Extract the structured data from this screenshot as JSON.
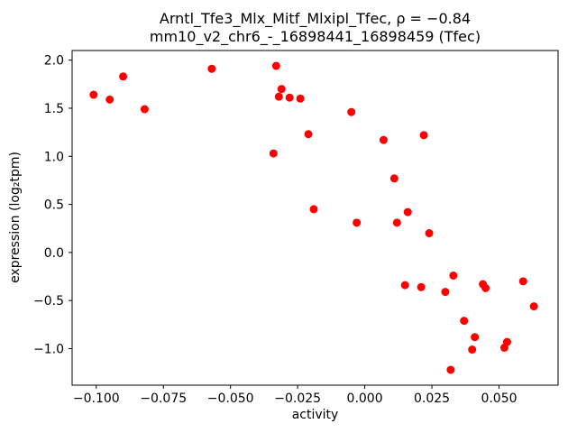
{
  "figure": {
    "background": "#ffffff"
  },
  "chart_data": {
    "type": "scatter",
    "title": "Arntl_Tfe3_Mlx_Mitf_Mlxipl_Tfec, ρ = −0.84",
    "subtitle": "mm10_v2_chr6_-_16898441_16898459 (Tfec)",
    "rho": -0.84,
    "xlabel": "activity",
    "ylabel": "expression (log₂tpm)",
    "marker_color": "#ff0000",
    "axis_color": "#000000",
    "grid": false,
    "legend": "none",
    "xlim": [
      -0.109,
      0.072
    ],
    "ylim": [
      -1.38,
      2.1
    ],
    "xticks": [
      -0.1,
      -0.075,
      -0.05,
      -0.025,
      0.0,
      0.025,
      0.05
    ],
    "xtick_labels": [
      "−0.100",
      "−0.075",
      "−0.050",
      "−0.025",
      "0.000",
      "0.025",
      "0.050"
    ],
    "yticks": [
      -1.0,
      -0.5,
      0.0,
      0.5,
      1.0,
      1.5,
      2.0
    ],
    "ytick_labels": [
      "−1.0",
      "−0.5",
      "0.0",
      "0.5",
      "1.0",
      "1.5",
      "2.0"
    ],
    "points": [
      [
        -0.101,
        1.64
      ],
      [
        -0.095,
        1.59
      ],
      [
        -0.09,
        1.83
      ],
      [
        -0.082,
        1.49
      ],
      [
        -0.057,
        1.91
      ],
      [
        -0.033,
        1.94
      ],
      [
        -0.031,
        1.7
      ],
      [
        -0.032,
        1.62
      ],
      [
        -0.028,
        1.61
      ],
      [
        -0.024,
        1.6
      ],
      [
        -0.034,
        1.03
      ],
      [
        -0.021,
        1.23
      ],
      [
        -0.019,
        0.45
      ],
      [
        -0.005,
        1.46
      ],
      [
        -0.003,
        0.31
      ],
      [
        0.007,
        1.17
      ],
      [
        0.011,
        0.77
      ],
      [
        0.012,
        0.31
      ],
      [
        0.016,
        0.42
      ],
      [
        0.015,
        -0.34
      ],
      [
        0.022,
        1.22
      ],
      [
        0.024,
        0.2
      ],
      [
        0.021,
        -0.36
      ],
      [
        0.03,
        -0.41
      ],
      [
        0.032,
        -1.22
      ],
      [
        0.033,
        -0.24
      ],
      [
        0.037,
        -0.71
      ],
      [
        0.04,
        -1.01
      ],
      [
        0.041,
        -0.88
      ],
      [
        0.044,
        -0.33
      ],
      [
        0.045,
        -0.37
      ],
      [
        0.052,
        -0.99
      ],
      [
        0.053,
        -0.93
      ],
      [
        0.059,
        -0.3
      ],
      [
        0.063,
        -0.56
      ]
    ]
  }
}
